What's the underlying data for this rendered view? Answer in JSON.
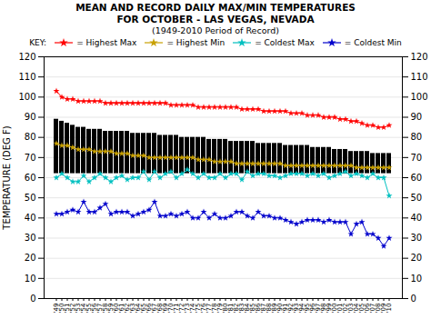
{
  "chart_data": {
    "type": "bar",
    "title": "MEAN AND RECORD DAILY MAX/MIN TEMPERATURES\nFOR OCTOBER - LAS VEGAS, NEVADA",
    "subtitle": "(1949-2010 Period of Record)",
    "ylabel": "TEMPERATURE (DEG F)",
    "legend_title": "KEY:",
    "categories": [
      "'49",
      "'50",
      "'51",
      "'52",
      "'53",
      "'54",
      "'55",
      "'56",
      "'57",
      "'58",
      "'59",
      "'60",
      "'61",
      "'62",
      "'63",
      "'64",
      "'65",
      "'66",
      "'67",
      "'68",
      "'69",
      "'70",
      "'71",
      "'72",
      "'73",
      "'74",
      "'75",
      "'76",
      "'77",
      "'78",
      "'79",
      "'80",
      "'81",
      "'82",
      "'83",
      "'84",
      "'85",
      "'86",
      "'87",
      "'88",
      "'89",
      "'90",
      "'91",
      "'92",
      "'93",
      "'94",
      "'95",
      "'96",
      "'97",
      "'98",
      "'99",
      "'00",
      "'01",
      "'02",
      "'03",
      "'04",
      "'05",
      "'06",
      "'07",
      "'08",
      "'09",
      "'10"
    ],
    "series": [
      {
        "type": "bar",
        "color": "#000000",
        "base": [
          62,
          62,
          62,
          62,
          62,
          62,
          62,
          62,
          62,
          62,
          62,
          62,
          62,
          62,
          62,
          62,
          62,
          62,
          62,
          62,
          62,
          62,
          62,
          62,
          62,
          62,
          62,
          62,
          62,
          62,
          62,
          62,
          62,
          62,
          62,
          62,
          62,
          62,
          62,
          62,
          62,
          62,
          62,
          62,
          62,
          62,
          62,
          62,
          62,
          62,
          62,
          62,
          62,
          62,
          62,
          62,
          62,
          62,
          62,
          62,
          62,
          62
        ],
        "values": [
          89,
          88,
          87,
          86,
          85,
          85,
          84,
          84,
          84,
          83,
          83,
          83,
          83,
          83,
          82,
          82,
          82,
          82,
          82,
          81,
          81,
          81,
          81,
          80,
          80,
          80,
          80,
          80,
          79,
          79,
          79,
          79,
          78,
          78,
          78,
          78,
          78,
          77,
          77,
          77,
          77,
          77,
          76,
          76,
          76,
          76,
          76,
          75,
          75,
          75,
          75,
          74,
          74,
          74,
          73,
          73,
          73,
          73,
          72,
          72,
          72,
          72
        ]
      },
      {
        "name": "= Highest Max",
        "type": "line",
        "marker": "star",
        "color": "#ff0000",
        "values": [
          103,
          100,
          99,
          99,
          98,
          98,
          98,
          98,
          98,
          97,
          97,
          97,
          97,
          97,
          97,
          97,
          97,
          97,
          97,
          97,
          97,
          96,
          96,
          96,
          96,
          96,
          95,
          95,
          95,
          95,
          95,
          95,
          95,
          95,
          94,
          94,
          94,
          94,
          93,
          93,
          93,
          93,
          93,
          92,
          92,
          92,
          91,
          91,
          91,
          90,
          90,
          90,
          89,
          89,
          88,
          88,
          87,
          86,
          86,
          85,
          85,
          86
        ]
      },
      {
        "name": "= Highest Min",
        "type": "line",
        "marker": "star",
        "color": "#c8a000",
        "values": [
          77,
          76,
          76,
          75,
          74,
          74,
          74,
          73,
          73,
          73,
          73,
          72,
          72,
          72,
          71,
          71,
          71,
          70,
          70,
          70,
          70,
          70,
          70,
          70,
          70,
          70,
          69,
          69,
          69,
          68,
          68,
          68,
          68,
          67,
          67,
          67,
          67,
          67,
          67,
          67,
          67,
          67,
          66,
          66,
          66,
          66,
          66,
          66,
          66,
          66,
          66,
          66,
          66,
          66,
          66,
          65,
          65,
          65,
          65,
          65,
          65,
          65
        ]
      },
      {
        "name": "= Coldest Max",
        "type": "line",
        "marker": "star",
        "color": "#00c0c0",
        "values": [
          60,
          62,
          60,
          58,
          58,
          61,
          58,
          60,
          62,
          60,
          58,
          60,
          61,
          59,
          60,
          60,
          63,
          59,
          63,
          60,
          62,
          63,
          60,
          62,
          64,
          62,
          60,
          62,
          60,
          60,
          62,
          60,
          62,
          62,
          59,
          63,
          61,
          62,
          62,
          61,
          61,
          60,
          61,
          62,
          62,
          62,
          61,
          62,
          61,
          62,
          60,
          61,
          62,
          63,
          61,
          62,
          61,
          60,
          62,
          60,
          60,
          51
        ]
      },
      {
        "name": "= Coldest Min",
        "type": "line",
        "marker": "star",
        "color": "#0000cc",
        "values": [
          42,
          42,
          43,
          44,
          43,
          48,
          43,
          43,
          45,
          47,
          42,
          43,
          43,
          43,
          41,
          42,
          43,
          44,
          48,
          41,
          41,
          42,
          41,
          42,
          43,
          40,
          40,
          43,
          40,
          42,
          40,
          40,
          41,
          43,
          43,
          41,
          40,
          43,
          41,
          41,
          40,
          40,
          39,
          38,
          37,
          38,
          39,
          39,
          39,
          38,
          39,
          38,
          38,
          38,
          32,
          37,
          38,
          32,
          32,
          30,
          26,
          30
        ]
      }
    ],
    "ylim": [
      0,
      120
    ],
    "yticks": [
      0,
      10,
      20,
      30,
      40,
      50,
      60,
      70,
      80,
      90,
      100,
      110,
      120
    ],
    "y2lim": [
      0,
      120
    ],
    "y2ticks": [
      0,
      10,
      20,
      30,
      40,
      50,
      60,
      70,
      80,
      90,
      100,
      110,
      120
    ],
    "grid": true
  }
}
